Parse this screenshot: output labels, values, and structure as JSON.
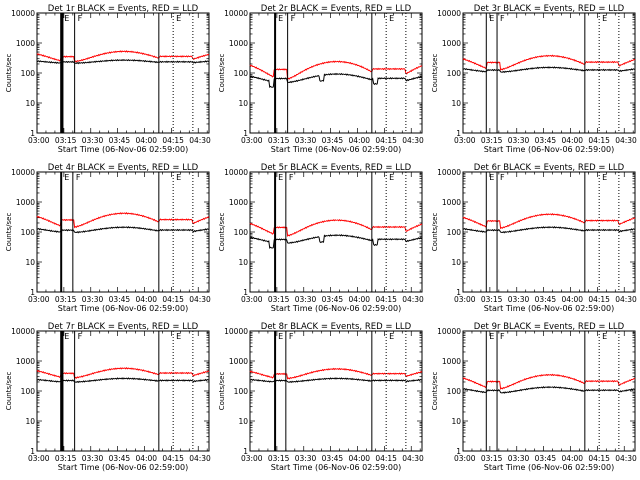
{
  "figure": {
    "xlabel": "Start Time (06-Nov-06 02:59:00)",
    "ylabel": "Counts/sec",
    "x_tick_labels": [
      "03:00",
      "03:15",
      "03:30",
      "03:45",
      "04:00",
      "04:15",
      "04:30"
    ],
    "y_tick_labels": [
      "1",
      "10",
      "100",
      "1000",
      "10000"
    ],
    "colors": {
      "events": "#000000",
      "lld": "#ff0000",
      "background": "#ffffff"
    }
  },
  "chart_data": [
    {
      "type": "line",
      "title": "Det 1r BLACK = Events, RED = LLD",
      "ylog": true,
      "ylim": [
        1,
        10000
      ],
      "xlim": [
        0,
        96
      ],
      "series": [
        {
          "color": "#000000",
          "mean": 240,
          "amp": 0.12,
          "drops": []
        },
        {
          "color": "#ff0000",
          "mean": 380,
          "amp": 0.38,
          "drops": []
        }
      ],
      "markers": [
        {
          "x": 13.5,
          "label": "E",
          "style": "solid",
          "thick": true
        },
        {
          "x": 14.2,
          "label": "",
          "style": "solid",
          "thick": true
        },
        {
          "x": 21,
          "label": "F",
          "style": "solid",
          "thick": false
        },
        {
          "x": 68,
          "label": "",
          "style": "solid",
          "thick": false
        },
        {
          "x": 76,
          "label": "E",
          "style": "dotted",
          "thick": false
        },
        {
          "x": 87,
          "label": "",
          "style": "dotted",
          "thick": false
        }
      ]
    },
    {
      "type": "line",
      "title": "Det 2r BLACK = Events, RED = LLD",
      "ylog": true,
      "ylim": [
        1,
        10000
      ],
      "xlim": [
        0,
        96
      ],
      "series": [
        {
          "color": "#000000",
          "mean": 70,
          "amp": 0.32,
          "drops": [
            12,
            40,
            70
          ]
        },
        {
          "color": "#ff0000",
          "mean": 150,
          "amp": 0.6,
          "drops": []
        }
      ],
      "markers": [
        {
          "x": 14,
          "label": "E",
          "style": "solid",
          "thick": true
        },
        {
          "x": 21,
          "label": "F",
          "style": "solid",
          "thick": false
        },
        {
          "x": 68,
          "label": "",
          "style": "solid",
          "thick": false
        },
        {
          "x": 76,
          "label": "E",
          "style": "dotted",
          "thick": false
        },
        {
          "x": 87,
          "label": "",
          "style": "dotted",
          "thick": false
        }
      ]
    },
    {
      "type": "line",
      "title": "Det 3r BLACK = Events, RED = LLD",
      "ylog": true,
      "ylim": [
        1,
        10000
      ],
      "xlim": [
        0,
        96
      ],
      "series": [
        {
          "color": "#000000",
          "mean": 130,
          "amp": 0.18,
          "drops": []
        },
        {
          "color": "#ff0000",
          "mean": 250,
          "amp": 0.5,
          "drops": []
        }
      ],
      "markers": [
        {
          "x": 13,
          "label": "E",
          "style": "solid",
          "thick": false
        },
        {
          "x": 19,
          "label": "F",
          "style": "solid",
          "thick": false
        },
        {
          "x": 68,
          "label": "",
          "style": "solid",
          "thick": false
        },
        {
          "x": 76,
          "label": "E",
          "style": "dotted",
          "thick": false
        },
        {
          "x": 87,
          "label": "",
          "style": "dotted",
          "thick": false
        }
      ]
    },
    {
      "type": "line",
      "title": "Det 4r BLACK = Events, RED = LLD",
      "ylog": true,
      "ylim": [
        1,
        10000
      ],
      "xlim": [
        0,
        96
      ],
      "series": [
        {
          "color": "#000000",
          "mean": 120,
          "amp": 0.2,
          "drops": []
        },
        {
          "color": "#ff0000",
          "mean": 280,
          "amp": 0.5,
          "drops": []
        }
      ],
      "markers": [
        {
          "x": 13.5,
          "label": "E",
          "style": "solid",
          "thick": true
        },
        {
          "x": 20,
          "label": "F",
          "style": "solid",
          "thick": false
        },
        {
          "x": 68,
          "label": "",
          "style": "solid",
          "thick": false
        },
        {
          "x": 76,
          "label": "E",
          "style": "dotted",
          "thick": false
        },
        {
          "x": 87,
          "label": "",
          "style": "dotted",
          "thick": false
        }
      ]
    },
    {
      "type": "line",
      "title": "Det 5r BLACK = Events, RED = LLD",
      "ylog": true,
      "ylim": [
        1,
        10000
      ],
      "xlim": [
        0,
        96
      ],
      "series": [
        {
          "color": "#000000",
          "mean": 60,
          "amp": 0.3,
          "drops": [
            12,
            40,
            70
          ]
        },
        {
          "color": "#ff0000",
          "mean": 160,
          "amp": 0.55,
          "drops": []
        }
      ],
      "markers": [
        {
          "x": 14,
          "label": "E",
          "style": "solid",
          "thick": true
        },
        {
          "x": 20,
          "label": "F",
          "style": "solid",
          "thick": false
        },
        {
          "x": 68,
          "label": "",
          "style": "solid",
          "thick": false
        },
        {
          "x": 76,
          "label": "E",
          "style": "dotted",
          "thick": false
        },
        {
          "x": 87,
          "label": "",
          "style": "dotted",
          "thick": false
        }
      ]
    },
    {
      "type": "line",
      "title": "Det 6r BLACK = Events, RED = LLD",
      "ylog": true,
      "ylim": [
        1,
        10000
      ],
      "xlim": [
        0,
        96
      ],
      "series": [
        {
          "color": "#000000",
          "mean": 120,
          "amp": 0.2,
          "drops": []
        },
        {
          "color": "#ff0000",
          "mean": 260,
          "amp": 0.5,
          "drops": []
        }
      ],
      "markers": [
        {
          "x": 13,
          "label": "E",
          "style": "solid",
          "thick": false
        },
        {
          "x": 19,
          "label": "F",
          "style": "solid",
          "thick": false
        },
        {
          "x": 68,
          "label": "",
          "style": "solid",
          "thick": false
        },
        {
          "x": 76,
          "label": "E",
          "style": "dotted",
          "thick": false
        },
        {
          "x": 87,
          "label": "",
          "style": "dotted",
          "thick": false
        }
      ]
    },
    {
      "type": "line",
      "title": "Det 7r BLACK = Events, RED = LLD",
      "ylog": true,
      "ylim": [
        1,
        10000
      ],
      "xlim": [
        0,
        96
      ],
      "series": [
        {
          "color": "#000000",
          "mean": 230,
          "amp": 0.14,
          "drops": []
        },
        {
          "color": "#ff0000",
          "mean": 420,
          "amp": 0.36,
          "drops": []
        }
      ],
      "markers": [
        {
          "x": 13.5,
          "label": "E",
          "style": "solid",
          "thick": true
        },
        {
          "x": 14.2,
          "label": "",
          "style": "solid",
          "thick": true
        },
        {
          "x": 21,
          "label": "F",
          "style": "solid",
          "thick": false
        },
        {
          "x": 68,
          "label": "",
          "style": "solid",
          "thick": false
        },
        {
          "x": 76,
          "label": "E",
          "style": "dotted",
          "thick": false
        },
        {
          "x": 87,
          "label": "",
          "style": "dotted",
          "thick": false
        }
      ]
    },
    {
      "type": "line",
      "title": "Det 8r BLACK = Events, RED = LLD",
      "ylog": true,
      "ylim": [
        1,
        10000
      ],
      "xlim": [
        0,
        96
      ],
      "series": [
        {
          "color": "#000000",
          "mean": 230,
          "amp": 0.14,
          "drops": []
        },
        {
          "color": "#ff0000",
          "mean": 400,
          "amp": 0.36,
          "drops": []
        }
      ],
      "markers": [
        {
          "x": 14,
          "label": "E",
          "style": "solid",
          "thick": true
        },
        {
          "x": 20,
          "label": "F",
          "style": "solid",
          "thick": false
        },
        {
          "x": 68,
          "label": "",
          "style": "solid",
          "thick": false
        },
        {
          "x": 76,
          "label": "E",
          "style": "dotted",
          "thick": false
        },
        {
          "x": 87,
          "label": "",
          "style": "dotted",
          "thick": false
        }
      ]
    },
    {
      "type": "line",
      "title": "Det 9r BLACK = Events, RED = LLD",
      "ylog": true,
      "ylim": [
        1,
        10000
      ],
      "xlim": [
        0,
        96
      ],
      "series": [
        {
          "color": "#000000",
          "mean": 110,
          "amp": 0.22,
          "drops": []
        },
        {
          "color": "#ff0000",
          "mean": 230,
          "amp": 0.5,
          "drops": []
        }
      ],
      "markers": [
        {
          "x": 13,
          "label": "E",
          "style": "solid",
          "thick": false
        },
        {
          "x": 19,
          "label": "F",
          "style": "solid",
          "thick": false
        },
        {
          "x": 68,
          "label": "",
          "style": "solid",
          "thick": false
        },
        {
          "x": 76,
          "label": "E",
          "style": "dotted",
          "thick": false
        },
        {
          "x": 87,
          "label": "",
          "style": "dotted",
          "thick": false
        }
      ]
    }
  ]
}
